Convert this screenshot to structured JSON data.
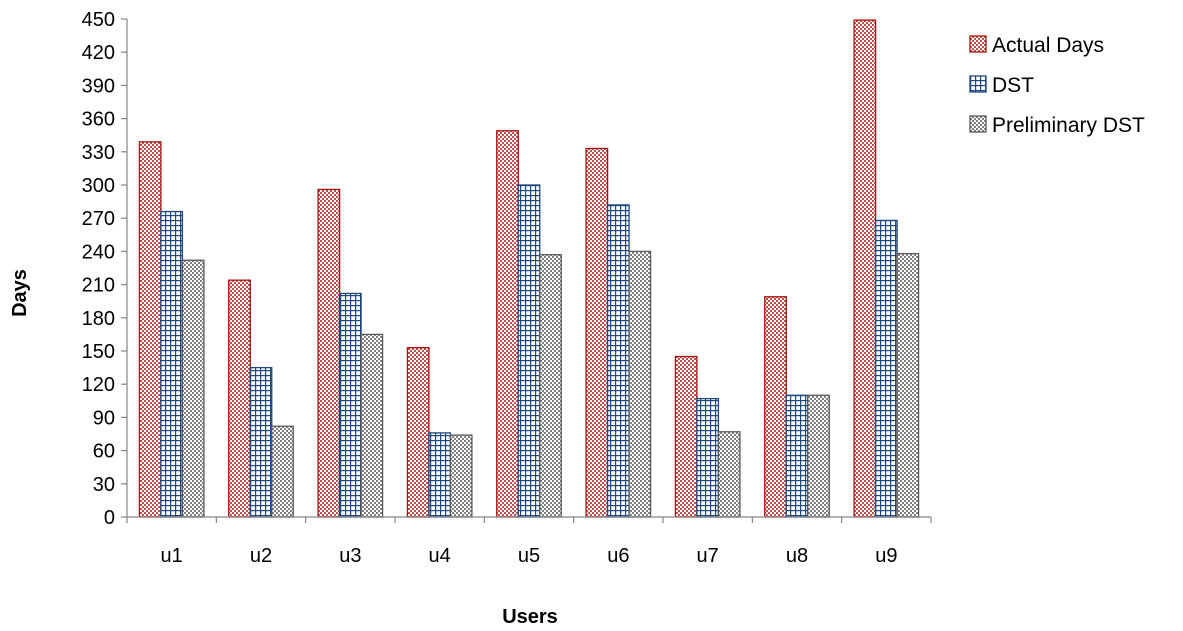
{
  "chart_data": {
    "type": "bar",
    "title": "",
    "xlabel": "Users",
    "ylabel": "Days",
    "categories": [
      "u1",
      "u2",
      "u3",
      "u4",
      "u5",
      "u6",
      "u7",
      "u8",
      "u9"
    ],
    "ylim": [
      0,
      450
    ],
    "yticks": [
      0,
      30,
      60,
      90,
      120,
      150,
      180,
      210,
      240,
      270,
      300,
      330,
      360,
      390,
      420,
      450
    ],
    "grid": false,
    "legend_position": "right",
    "series": [
      {
        "name": "Actual Days",
        "values": [
          339,
          214,
          296,
          153,
          349,
          333,
          145,
          199,
          449
        ],
        "fill_color": "#C0504D",
        "border_color": "#A6110D",
        "pattern": "checker"
      },
      {
        "name": "DST",
        "values": [
          276,
          135,
          202,
          76,
          300,
          282,
          107,
          110,
          268
        ],
        "fill_color": "#4F81BD",
        "border_color": "#1F497D",
        "pattern": "grid"
      },
      {
        "name": "Preliminary DST",
        "values": [
          232,
          82,
          165,
          74,
          237,
          240,
          77,
          110,
          238
        ],
        "fill_color": "#7F7F7F",
        "border_color": "#595959",
        "pattern": "checker"
      }
    ]
  }
}
